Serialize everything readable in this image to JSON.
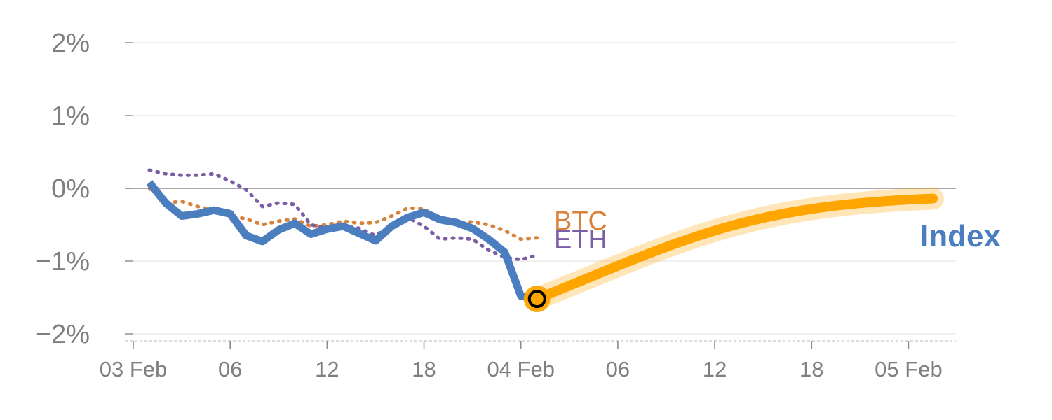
{
  "chart_data": {
    "type": "line",
    "title": "",
    "xlabel": "",
    "ylabel": "",
    "ylim": [
      -2.1,
      2.0
    ],
    "y_ticks": [
      {
        "value": 2,
        "label": "2%"
      },
      {
        "value": 1,
        "label": "1%"
      },
      {
        "value": 0,
        "label": "0%"
      },
      {
        "value": -1,
        "label": "−1%"
      },
      {
        "value": -2,
        "label": "−2%"
      }
    ],
    "x_ticks": [
      {
        "hour": 0,
        "label": "03 Feb"
      },
      {
        "hour": 6,
        "label": "06"
      },
      {
        "hour": 12,
        "label": "12"
      },
      {
        "hour": 18,
        "label": "18"
      },
      {
        "hour": 24,
        "label": "04 Feb"
      },
      {
        "hour": 30,
        "label": "06"
      },
      {
        "hour": 36,
        "label": "12"
      },
      {
        "hour": 42,
        "label": "18"
      },
      {
        "hour": 48,
        "label": "05 Feb"
      }
    ],
    "grid": true,
    "legend": "inline labels at series ends",
    "series": [
      {
        "name": "BTC",
        "color": "#d9823b",
        "style": "dotted",
        "x": [
          1,
          2,
          3,
          4,
          5,
          6,
          7,
          8,
          9,
          10,
          11,
          12,
          13,
          14,
          15,
          16,
          17,
          18,
          19,
          20,
          21,
          22,
          23,
          24,
          25
        ],
        "y": [
          0.0,
          -0.2,
          -0.18,
          -0.25,
          -0.3,
          -0.38,
          -0.42,
          -0.5,
          -0.45,
          -0.42,
          -0.52,
          -0.5,
          -0.45,
          -0.48,
          -0.47,
          -0.38,
          -0.27,
          -0.28,
          -0.44,
          -0.48,
          -0.46,
          -0.5,
          -0.58,
          -0.7,
          -0.68
        ]
      },
      {
        "name": "ETH",
        "color": "#7b5ea7",
        "style": "dotted",
        "x": [
          1,
          2,
          3,
          4,
          5,
          6,
          7,
          8,
          9,
          10,
          11,
          12,
          13,
          14,
          15,
          16,
          17,
          18,
          19,
          20,
          21,
          22,
          23,
          24,
          25
        ],
        "y": [
          0.25,
          0.2,
          0.18,
          0.18,
          0.2,
          0.1,
          -0.02,
          -0.25,
          -0.2,
          -0.22,
          -0.5,
          -0.55,
          -0.5,
          -0.55,
          -0.65,
          -0.5,
          -0.4,
          -0.52,
          -0.7,
          -0.68,
          -0.7,
          -0.85,
          -0.95,
          -0.98,
          -0.92
        ]
      },
      {
        "name": "Index",
        "color": "#4a7ebf",
        "style": "solid",
        "x": [
          1,
          2,
          3,
          4,
          5,
          6,
          7,
          8,
          9,
          10,
          11,
          12,
          13,
          14,
          15,
          16,
          17,
          18,
          19,
          20,
          21,
          22,
          23,
          24,
          24.5,
          25
        ],
        "y": [
          0.08,
          -0.2,
          -0.38,
          -0.35,
          -0.3,
          -0.35,
          -0.65,
          -0.73,
          -0.57,
          -0.48,
          -0.63,
          -0.56,
          -0.52,
          -0.62,
          -0.72,
          -0.52,
          -0.4,
          -0.33,
          -0.43,
          -0.47,
          -0.55,
          -0.7,
          -0.88,
          -1.48,
          -1.5,
          -1.52
        ]
      }
    ],
    "forecast": {
      "color": "#ffa500",
      "start": {
        "x": 25,
        "y": -1.52
      },
      "end": {
        "x": 49.5,
        "y": -0.14
      }
    }
  }
}
